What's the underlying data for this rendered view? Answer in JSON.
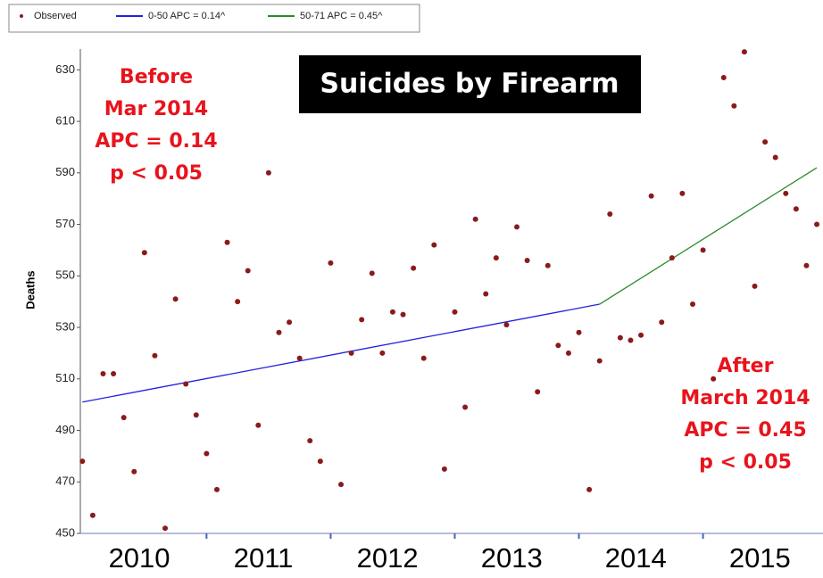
{
  "chart_data": {
    "type": "scatter",
    "title": "Suicides by Firearm",
    "y_label": "Deaths",
    "x": [
      0,
      1,
      2,
      3,
      4,
      5,
      6,
      7,
      8,
      9,
      10,
      11,
      12,
      13,
      14,
      15,
      16,
      17,
      18,
      19,
      20,
      21,
      22,
      23,
      24,
      25,
      26,
      27,
      28,
      29,
      30,
      31,
      32,
      33,
      34,
      35,
      36,
      37,
      38,
      39,
      40,
      41,
      42,
      43,
      44,
      45,
      46,
      47,
      48,
      49,
      50,
      51,
      52,
      53,
      54,
      55,
      56,
      57,
      58,
      59,
      60,
      61,
      62,
      63,
      64,
      65,
      66,
      67,
      68,
      69,
      70,
      71
    ],
    "values": [
      478,
      457,
      512,
      512,
      495,
      474,
      559,
      519,
      452,
      541,
      508,
      496,
      481,
      467,
      563,
      540,
      552,
      492,
      590,
      528,
      532,
      518,
      486,
      478,
      555,
      469,
      520,
      533,
      551,
      520,
      536,
      535,
      553,
      518,
      562,
      475,
      536,
      499,
      572,
      543,
      557,
      531,
      569,
      556,
      505,
      554,
      523,
      520,
      528,
      467,
      517,
      574,
      526,
      525,
      527,
      581,
      532,
      557,
      582,
      539,
      560,
      510,
      627,
      616,
      637,
      546,
      602,
      596,
      582,
      576,
      554,
      570
    ],
    "point_name": "Observed",
    "point_color": "#8b1a1a",
    "series": [
      {
        "name": "0-50 APC  = 0.14^",
        "color": "#2020e0",
        "x": [
          0,
          50
        ],
        "values": [
          501,
          539
        ]
      },
      {
        "name": "50-71 APC  = 0.45^",
        "color": "#2a8a2a",
        "x": [
          50,
          71
        ],
        "values": [
          539,
          592
        ]
      }
    ],
    "xlim": [
      -0.2,
      71.6
    ],
    "xtick_marks": [
      12,
      24,
      36,
      48,
      60
    ],
    "xticks": [
      {
        "value": 5.5,
        "label": "2010"
      },
      {
        "value": 17.5,
        "label": "2011"
      },
      {
        "value": 29.5,
        "label": "2012"
      },
      {
        "value": 41.5,
        "label": "2013"
      },
      {
        "value": 53.5,
        "label": "2014"
      },
      {
        "value": 65.5,
        "label": "2015"
      }
    ],
    "ylim": [
      450,
      636
    ],
    "yticks": [
      450,
      470,
      490,
      510,
      530,
      550,
      570,
      590,
      610,
      630
    ],
    "annotations": [
      {
        "lines": [
          "Before",
          "Mar 2014",
          "APC = 0.14",
          "p < 0.05"
        ]
      },
      {
        "lines": [
          "After",
          "March 2014",
          "APC = 0.45",
          "p < 0.05"
        ]
      }
    ]
  }
}
